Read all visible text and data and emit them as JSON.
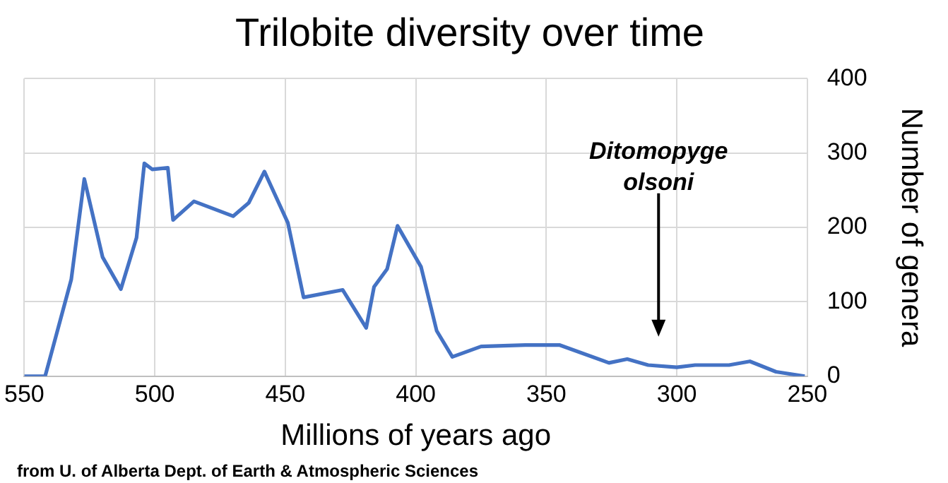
{
  "chart_data": {
    "type": "line",
    "title": "Trilobite diversity over time",
    "xlabel": "Millions of years ago",
    "ylabel": "Number of genera",
    "x": [
      550,
      542,
      532,
      527,
      520,
      513,
      507,
      504,
      501,
      495,
      493,
      485,
      470,
      464,
      458,
      449,
      443,
      428,
      419,
      416,
      411,
      407,
      398,
      392,
      386,
      375,
      358,
      345,
      326,
      319,
      311,
      300,
      293,
      280,
      272,
      262,
      251
    ],
    "series": [
      {
        "color": "#4472c4",
        "values": [
          0,
          0,
          130,
          265,
          160,
          117,
          186,
          286,
          278,
          280,
          210,
          235,
          215,
          233,
          275,
          206,
          106,
          116,
          65,
          120,
          144,
          202,
          147,
          61,
          26,
          40,
          42,
          42,
          18,
          23,
          15,
          12,
          15,
          15,
          20,
          6,
          0
        ]
      }
    ],
    "xlim": [
      550,
      250
    ],
    "xticks": [
      550,
      500,
      450,
      400,
      350,
      300,
      250
    ],
    "ylim": [
      0,
      400
    ],
    "yticks": [
      0,
      100,
      200,
      300,
      400
    ],
    "grid": true,
    "legend": false,
    "marker": "none",
    "line_style": "solid",
    "annotations": [
      "Ditomopyge olsoni",
      "from U. of Alberta Dept. of Earth & Atmospheric Sciences"
    ]
  }
}
